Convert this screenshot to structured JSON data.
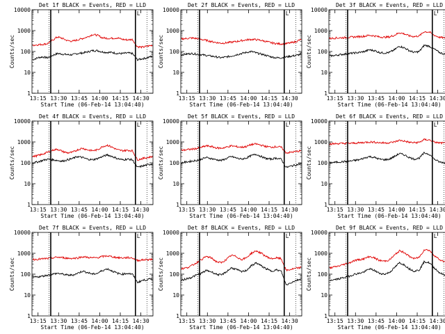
{
  "figure": {
    "start_time_label": "Start Time (06-Feb-14 13:04:40)",
    "ylabel": "Counts/sec",
    "legend_text": "BLACK = Events, RED = LLD",
    "corner_mark": "L"
  },
  "colors": {
    "events": "#000000",
    "lld": "#e00000"
  },
  "chart_data": [
    {
      "type": "line",
      "title": "Det 1f BLACK = Events, RED = LLD",
      "detector": "Det 1f",
      "xlabel": "Start Time (06-Feb-14 13:04:40)",
      "ylabel": "Counts/sec",
      "x_ticks": [
        "13:15",
        "13:30",
        "13:45",
        "14:00",
        "14:15",
        "14:30"
      ],
      "y_ticks": [
        "1",
        "10",
        "100",
        "1000",
        "10000"
      ],
      "ylim": [
        1,
        10000
      ],
      "y_scale": "log",
      "series": [
        {
          "name": "Events",
          "color": "#000000",
          "values": [
            40,
            50,
            55,
            50,
            65,
            80,
            75,
            70,
            70,
            80,
            85,
            95,
            110,
            110,
            95,
            90,
            90,
            80,
            80,
            85,
            80,
            40,
            45,
            50,
            60
          ]
        },
        {
          "name": "LLD",
          "color": "#e00000",
          "values": [
            200,
            210,
            220,
            240,
            350,
            500,
            420,
            330,
            310,
            360,
            420,
            500,
            650,
            600,
            450,
            430,
            430,
            450,
            380,
            360,
            380,
            170,
            160,
            180,
            200
          ]
        }
      ]
    },
    {
      "type": "line",
      "title": "Det 2f BLACK = Events, RED = LLD",
      "detector": "Det 2f",
      "xlabel": "Start Time (06-Feb-14 13:04:40)",
      "ylabel": "Counts/sec",
      "x_ticks": [
        "13:15",
        "13:30",
        "13:45",
        "14:00",
        "14:15",
        "14:30"
      ],
      "y_ticks": [
        "1",
        "10",
        "100",
        "1000",
        "10000"
      ],
      "ylim": [
        1,
        10000
      ],
      "y_scale": "log",
      "series": [
        {
          "name": "Events",
          "color": "#000000",
          "values": [
            70,
            75,
            80,
            75,
            70,
            65,
            60,
            55,
            50,
            55,
            60,
            70,
            80,
            90,
            100,
            85,
            75,
            65,
            55,
            50,
            50,
            55,
            60,
            65,
            75
          ]
        },
        {
          "name": "LLD",
          "color": "#e00000",
          "values": [
            400,
            420,
            440,
            420,
            380,
            340,
            300,
            270,
            250,
            260,
            280,
            300,
            330,
            360,
            380,
            370,
            340,
            300,
            260,
            240,
            230,
            240,
            260,
            300,
            380
          ]
        }
      ]
    },
    {
      "type": "line",
      "title": "Det 3f BLACK = Events, RED = LLD",
      "detector": "Det 3f",
      "xlabel": "Start Time (06-Feb-14 13:04:40)",
      "ylabel": "Counts/sec",
      "x_ticks": [
        "13:15",
        "13:30",
        "13:45",
        "14:00",
        "14:15",
        "14:30"
      ],
      "y_ticks": [
        "1",
        "10",
        "100",
        "1000",
        "10000"
      ],
      "ylim": [
        1,
        10000
      ],
      "y_scale": "log",
      "series": [
        {
          "name": "Events",
          "color": "#000000",
          "values": [
            60,
            65,
            70,
            75,
            80,
            85,
            90,
            100,
            120,
            110,
            90,
            85,
            90,
            120,
            180,
            150,
            110,
            90,
            100,
            200,
            180,
            130,
            90,
            75,
            70
          ]
        },
        {
          "name": "LLD",
          "color": "#e00000",
          "values": [
            420,
            440,
            450,
            460,
            480,
            500,
            520,
            540,
            600,
            560,
            500,
            480,
            500,
            600,
            800,
            700,
            560,
            520,
            560,
            900,
            850,
            600,
            480,
            450,
            440
          ]
        }
      ]
    },
    {
      "type": "line",
      "title": "Det 4f BLACK = Events, RED = LLD",
      "detector": "Det 4f",
      "xlabel": "Start Time (06-Feb-14 13:04:40)",
      "ylabel": "Counts/sec",
      "x_ticks": [
        "13:15",
        "13:30",
        "13:45",
        "14:00",
        "14:15",
        "14:30"
      ],
      "y_ticks": [
        "1",
        "10",
        "100",
        "1000",
        "10000"
      ],
      "ylim": [
        1,
        10000
      ],
      "y_scale": "log",
      "series": [
        {
          "name": "Events",
          "color": "#000000",
          "values": [
            100,
            110,
            130,
            150,
            140,
            130,
            120,
            140,
            160,
            200,
            180,
            150,
            140,
            160,
            200,
            240,
            200,
            160,
            140,
            150,
            140,
            60,
            70,
            80,
            90
          ]
        },
        {
          "name": "LLD",
          "color": "#e00000",
          "values": [
            200,
            220,
            260,
            320,
            400,
            450,
            350,
            300,
            320,
            420,
            500,
            420,
            380,
            420,
            600,
            700,
            550,
            420,
            380,
            400,
            380,
            140,
            160,
            180,
            200
          ]
        }
      ]
    },
    {
      "type": "line",
      "title": "Det 5f BLACK = Events, RED = LLD",
      "detector": "Det 5f",
      "xlabel": "Start Time (06-Feb-14 13:04:40)",
      "ylabel": "Counts/sec",
      "x_ticks": [
        "13:15",
        "13:30",
        "13:45",
        "14:00",
        "14:15",
        "14:30"
      ],
      "y_ticks": [
        "1",
        "10",
        "100",
        "1000",
        "10000"
      ],
      "ylim": [
        1,
        10000
      ],
      "y_scale": "log",
      "series": [
        {
          "name": "Events",
          "color": "#000000",
          "values": [
            100,
            110,
            120,
            130,
            150,
            180,
            160,
            140,
            130,
            160,
            200,
            170,
            150,
            170,
            220,
            260,
            200,
            160,
            150,
            170,
            150,
            60,
            70,
            80,
            90
          ]
        },
        {
          "name": "LLD",
          "color": "#e00000",
          "values": [
            400,
            420,
            450,
            480,
            550,
            650,
            600,
            520,
            500,
            560,
            650,
            600,
            560,
            600,
            750,
            800,
            700,
            600,
            560,
            600,
            560,
            300,
            320,
            350,
            380
          ]
        }
      ]
    },
    {
      "type": "line",
      "title": "Det 6f BLACK = Events, RED = LLD",
      "detector": "Det 6f",
      "xlabel": "Start Time (06-Feb-14 13:04:40)",
      "ylabel": "Counts/sec",
      "x_ticks": [
        "13:15",
        "13:30",
        "13:45",
        "14:00",
        "14:15",
        "14:30"
      ],
      "y_ticks": [
        "1",
        "10",
        "100",
        "1000",
        "10000"
      ],
      "ylim": [
        1,
        10000
      ],
      "y_scale": "log",
      "series": [
        {
          "name": "Events",
          "color": "#000000",
          "values": [
            100,
            105,
            110,
            115,
            120,
            130,
            140,
            170,
            200,
            180,
            150,
            140,
            150,
            200,
            280,
            240,
            180,
            150,
            170,
            300,
            260,
            150,
            110,
            100,
            100
          ]
        },
        {
          "name": "LLD",
          "color": "#e00000",
          "values": [
            800,
            820,
            840,
            850,
            860,
            880,
            900,
            950,
            1000,
            980,
            920,
            900,
            920,
            1000,
            1200,
            1100,
            960,
            920,
            960,
            1300,
            1250,
            980,
            900,
            880,
            880
          ]
        }
      ]
    },
    {
      "type": "line",
      "title": "Det 7f BLACK = Events, RED = LLD",
      "detector": "Det 7f",
      "xlabel": "Start Time (06-Feb-14 13:04:40)",
      "ylabel": "Counts/sec",
      "x_ticks": [
        "13:15",
        "13:30",
        "13:45",
        "14:00",
        "14:15",
        "14:30"
      ],
      "y_ticks": [
        "1",
        "10",
        "100",
        "1000",
        "10000"
      ],
      "ylim": [
        1,
        10000
      ],
      "y_scale": "log",
      "series": [
        {
          "name": "Events",
          "color": "#000000",
          "values": [
            70,
            75,
            80,
            90,
            100,
            110,
            100,
            90,
            90,
            110,
            140,
            120,
            100,
            110,
            150,
            180,
            140,
            110,
            100,
            110,
            100,
            40,
            50,
            55,
            60
          ]
        },
        {
          "name": "LLD",
          "color": "#e00000",
          "values": [
            500,
            520,
            540,
            560,
            600,
            650,
            620,
            580,
            570,
            600,
            680,
            640,
            600,
            620,
            700,
            750,
            680,
            620,
            600,
            620,
            600,
            450,
            480,
            500,
            520
          ]
        }
      ]
    },
    {
      "type": "line",
      "title": "Det 8f BLACK = Events, RED = LLD",
      "detector": "Det 8f",
      "xlabel": "Start Time (06-Feb-14 13:04:40)",
      "ylabel": "Counts/sec",
      "x_ticks": [
        "13:15",
        "13:30",
        "13:45",
        "14:00",
        "14:15",
        "14:30"
      ],
      "y_ticks": [
        "1",
        "10",
        "100",
        "1000",
        "10000"
      ],
      "ylim": [
        1,
        10000
      ],
      "y_scale": "log",
      "series": [
        {
          "name": "Events",
          "color": "#000000",
          "values": [
            50,
            60,
            70,
            90,
            110,
            150,
            130,
            100,
            90,
            130,
            200,
            170,
            130,
            150,
            250,
            350,
            250,
            180,
            140,
            160,
            140,
            30,
            40,
            50,
            60
          ]
        },
        {
          "name": "LLD",
          "color": "#e00000",
          "values": [
            180,
            200,
            250,
            350,
            500,
            700,
            600,
            400,
            350,
            500,
            800,
            700,
            500,
            600,
            1000,
            1300,
            1000,
            700,
            550,
            600,
            550,
            150,
            170,
            190,
            210
          ]
        }
      ]
    },
    {
      "type": "line",
      "title": "Det 9f BLACK = Events, RED = LLD",
      "detector": "Det 9f",
      "xlabel": "Start Time (06-Feb-14 13:04:40)",
      "ylabel": "Counts/sec",
      "x_ticks": [
        "13:15",
        "13:30",
        "13:45",
        "14:00",
        "14:15",
        "14:30"
      ],
      "y_ticks": [
        "1",
        "10",
        "100",
        "1000",
        "10000"
      ],
      "ylim": [
        1,
        10000
      ],
      "y_scale": "log",
      "series": [
        {
          "name": "Events",
          "color": "#000000",
          "values": [
            50,
            55,
            60,
            70,
            80,
            100,
            110,
            130,
            180,
            150,
            110,
            100,
            120,
            200,
            350,
            280,
            180,
            140,
            160,
            400,
            350,
            200,
            120,
            90,
            80
          ]
        },
        {
          "name": "LLD",
          "color": "#e00000",
          "values": [
            200,
            220,
            250,
            300,
            350,
            450,
            500,
            550,
            700,
            600,
            450,
            420,
            480,
            800,
            1300,
            1100,
            700,
            550,
            650,
            1500,
            1400,
            800,
            500,
            400,
            350
          ]
        }
      ]
    }
  ]
}
